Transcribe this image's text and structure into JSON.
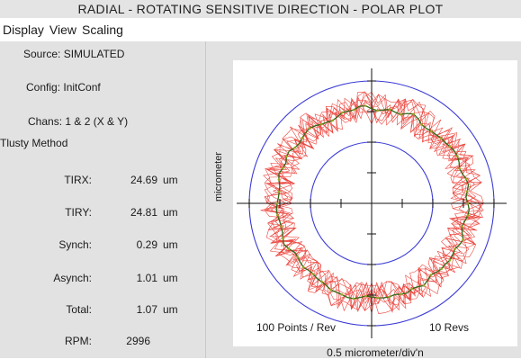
{
  "window": {
    "title": "RADIAL - ROTATING SENSITIVE DIRECTION - POLAR PLOT"
  },
  "menu": {
    "items": [
      "Display",
      "View",
      "Scaling"
    ]
  },
  "info": {
    "source": "Source:  SIMULATED",
    "config": "Config:  InitConf",
    "chans": "Chans:  1 & 2 (X & Y)",
    "method": "Tlusty Method"
  },
  "measurements": [
    {
      "label": "TIRX:",
      "value": "24.69",
      "unit": "um"
    },
    {
      "label": "TIRY:",
      "value": "24.81",
      "unit": "um"
    },
    {
      "label": "Synch:",
      "value": "0.29",
      "unit": "um"
    },
    {
      "label": "Asynch:",
      "value": "1.01",
      "unit": "um"
    },
    {
      "label": "Total:",
      "value": "1.07",
      "unit": "um"
    },
    {
      "label": "RPM:",
      "value": "2996",
      "unit": ""
    }
  ],
  "plot": {
    "ylabel": "micrometer",
    "xlabel": "0.5 micrometer/div'n",
    "points_note": "100 Points / Rev",
    "revs_note": "10 Revs",
    "colors": {
      "reference_circles": "#3a3ad6",
      "raw_trace": "#e8261d",
      "mean_trace": "#2f6b1a",
      "mean_points": "#9aa51a",
      "crosshair": "#111111"
    }
  },
  "chart_data": {
    "type": "scatter",
    "coordinate_system": "polar",
    "xlabel": "0.5 micrometer/div'n",
    "ylabel": "micrometer",
    "points_per_rev": 100,
    "revs": 10,
    "reference_circles_divisions": [
      1.0,
      2.0
    ],
    "trace_radius_divisions": {
      "mean": 1.55,
      "min": 1.3,
      "max": 1.83
    },
    "series": [
      {
        "name": "raw"
      },
      {
        "name": "mean"
      }
    ]
  }
}
